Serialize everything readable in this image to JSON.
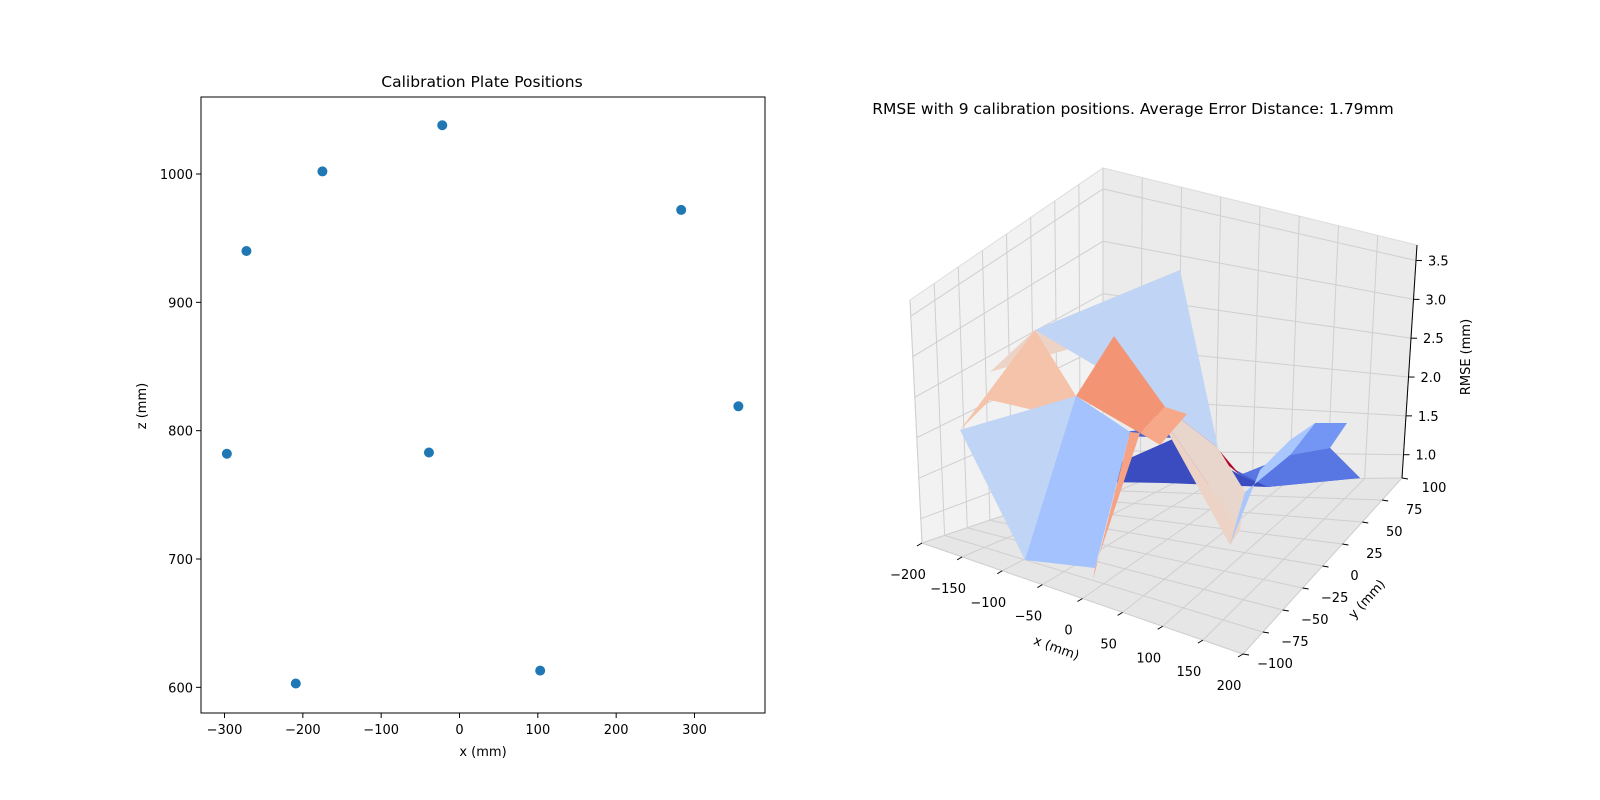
{
  "chart_data": [
    {
      "type": "scatter",
      "title": "Calibration Plate Positions",
      "xlabel": "x (mm)",
      "ylabel": "z (mm)",
      "xlim": [
        -330,
        390
      ],
      "ylim": [
        580,
        1060
      ],
      "xticks": [
        -300,
        -200,
        -100,
        0,
        100,
        200,
        300
      ],
      "yticks": [
        600,
        700,
        800,
        900,
        1000
      ],
      "grid": false,
      "color": "#1f77b4",
      "points": [
        {
          "x": -22,
          "y": 1038
        },
        {
          "x": -175,
          "y": 1002
        },
        {
          "x": -272,
          "y": 940
        },
        {
          "x": 283,
          "y": 972
        },
        {
          "x": 356,
          "y": 819
        },
        {
          "x": -297,
          "y": 782
        },
        {
          "x": -39,
          "y": 783
        },
        {
          "x": -209,
          "y": 603
        },
        {
          "x": 103,
          "y": 613
        }
      ]
    },
    {
      "type": "surface3d",
      "title": "RMSE with 9 calibration positions. Average Error Distance: 1.79mm",
      "xlabel": "x (mm)",
      "ylabel": "y (mm)",
      "zlabel": "RMSE (mm)",
      "xticks": [
        "−200",
        "−150",
        "−100",
        "−50",
        "0",
        "50",
        "100",
        "150",
        "200"
      ],
      "yticks": [
        "−100",
        "−75",
        "−50",
        "−25",
        "0",
        "25",
        "50",
        "75",
        "100"
      ],
      "zticks": [
        "1.0",
        "1.5",
        "2.0",
        "2.5",
        "3.0",
        "3.5"
      ],
      "xlim": [
        -200,
        200
      ],
      "ylim": [
        -100,
        100
      ],
      "zlim": [
        0.7,
        3.7
      ],
      "colormap": "coolwarm",
      "grid": true
    }
  ]
}
